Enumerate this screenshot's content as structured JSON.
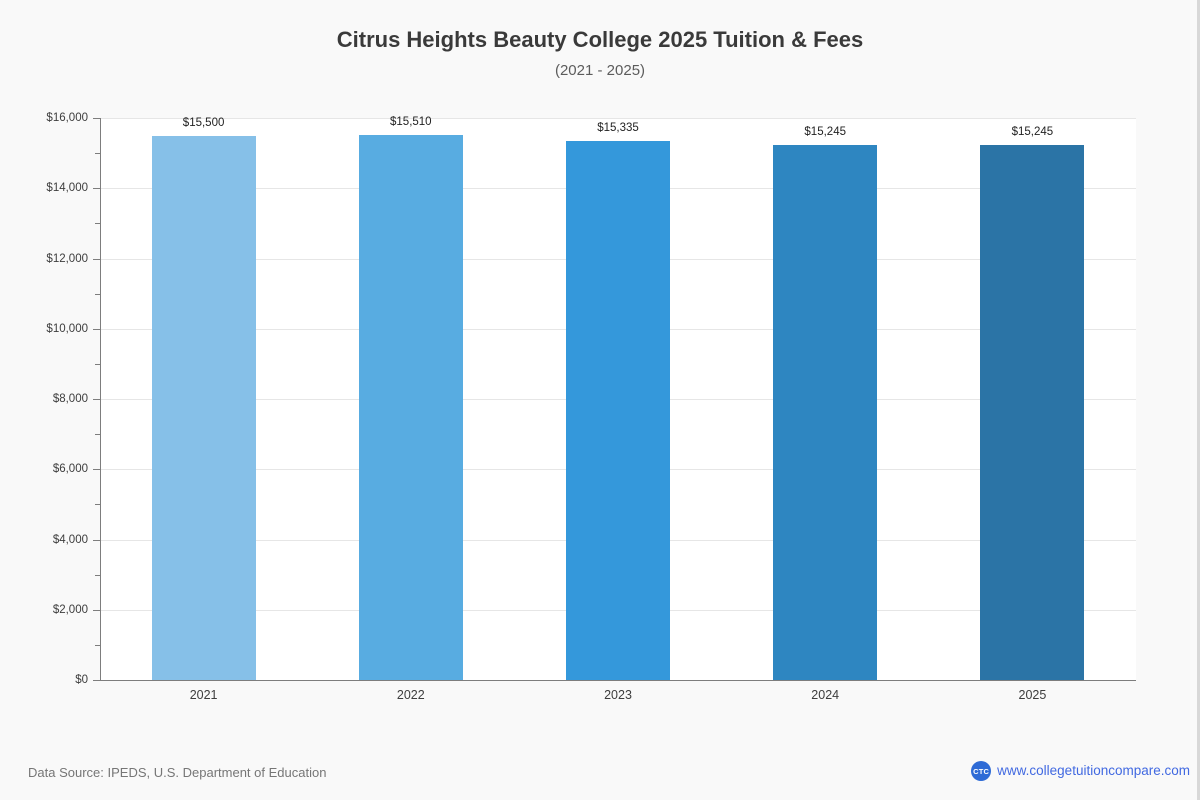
{
  "chart_data": {
    "type": "bar",
    "title": "Citrus Heights Beauty College 2025 Tuition & Fees",
    "subtitle": "(2021 - 2025)",
    "categories": [
      "2021",
      "2022",
      "2023",
      "2024",
      "2025"
    ],
    "values": [
      15500,
      15510,
      15335,
      15245,
      15245
    ],
    "value_labels": [
      "$15,500",
      "$15,510",
      "$15,335",
      "$15,245",
      "$15,245"
    ],
    "bar_colors": [
      "#86c0e8",
      "#58ace1",
      "#3498db",
      "#2e86c1",
      "#2b74a6"
    ],
    "xlabel": "",
    "ylabel": "",
    "ylim": [
      0,
      16000
    ],
    "ytick_step": 2000,
    "ytick_minor_step": 1000,
    "ytick_labels": [
      "$0",
      "$2,000",
      "$4,000",
      "$6,000",
      "$8,000",
      "$10,000",
      "$12,000",
      "$14,000",
      "$16,000"
    ],
    "grid": "horizontal-major-only",
    "legend": "none"
  },
  "footer": {
    "data_source": "Data Source: IPEDS, U.S. Department of Education",
    "brand_abbr": "CTC",
    "website": "www.collegetuitioncompare.com"
  },
  "colors": {
    "page_background": "#f9f9f9",
    "plot_background": "#ffffff",
    "axis_gray": "#7d7d7d",
    "grid_gray": "#e6e6e6",
    "brand_logo_blue": "#2e6bd6",
    "link_blue": "#4169e1"
  }
}
